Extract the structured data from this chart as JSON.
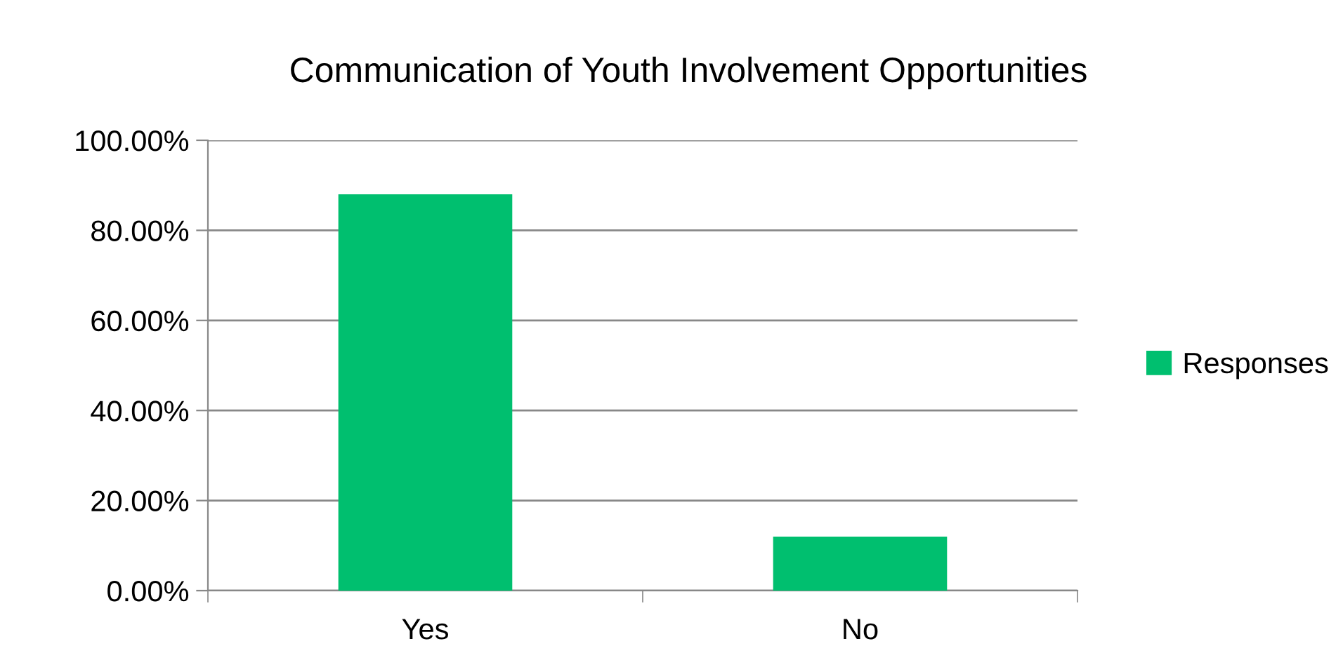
{
  "chart_data": {
    "type": "bar",
    "title": "Communication of Youth Involvement Opportunities",
    "categories": [
      "Yes",
      "No"
    ],
    "series": [
      {
        "name": "Responses",
        "color": "#00bf6f",
        "values": [
          88,
          12
        ]
      }
    ],
    "ylim": [
      0,
      100
    ],
    "yticks": [
      {
        "value": 0,
        "label": "0.00%"
      },
      {
        "value": 20,
        "label": "20.00%"
      },
      {
        "value": 40,
        "label": "40.00%"
      },
      {
        "value": 60,
        "label": "60.00%"
      },
      {
        "value": 80,
        "label": "80.00%"
      },
      {
        "value": 100,
        "label": "100.00%"
      }
    ],
    "grid": "y",
    "legend": "right"
  }
}
